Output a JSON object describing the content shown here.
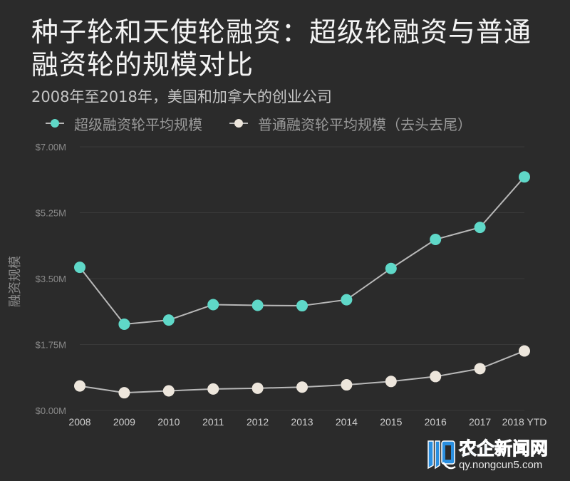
{
  "header": {
    "title": "种子轮和天使轮融资：超级轮融资与普通融资轮的规模对比",
    "subtitle": "2008年至2018年，美国和加拿大的创业公司"
  },
  "legend": [
    {
      "label": "超级融资轮平均规模",
      "color": "#5fd8c8"
    },
    {
      "label": "普通融资轮平均规模（去头去尾）",
      "color": "#ede6dc"
    }
  ],
  "colors": {
    "background": "#2b2b2b",
    "line": "#b8b8b8",
    "grid": "#3a3a3a",
    "super_round": "#5fd8c8",
    "normal_round": "#ede6dc"
  },
  "watermark": {
    "name": "农企新闻网",
    "url": "qy.nongcun5.com"
  },
  "chart_data": {
    "type": "line",
    "title": "种子轮和天使轮融资：超级轮融资与普通融资轮的规模对比",
    "subtitle": "2008年至2018年，美国和加拿大的创业公司",
    "xlabel": "",
    "ylabel": "融资规模",
    "categories": [
      "2008",
      "2009",
      "2010",
      "2011",
      "2012",
      "2013",
      "2014",
      "2015",
      "2016",
      "2017",
      "2018 YTD"
    ],
    "ylim": [
      0,
      7
    ],
    "yticks": [
      0,
      1.75,
      3.5,
      5.25,
      7
    ],
    "ytick_labels": [
      "$0.00M",
      "$1.75M",
      "$3.50M",
      "$5.25M",
      "$7.00M"
    ],
    "grid": true,
    "legend_position": "top-left",
    "series": [
      {
        "name": "超级融资轮平均规模",
        "color": "#5fd8c8",
        "values": [
          3.8,
          2.29,
          2.4,
          2.81,
          2.79,
          2.78,
          2.94,
          3.77,
          4.54,
          4.86,
          6.2
        ]
      },
      {
        "name": "普通融资轮平均规模（去头去尾）",
        "color": "#ede6dc",
        "values": [
          0.65,
          0.47,
          0.52,
          0.57,
          0.59,
          0.62,
          0.68,
          0.77,
          0.9,
          1.11,
          1.58
        ]
      }
    ]
  }
}
